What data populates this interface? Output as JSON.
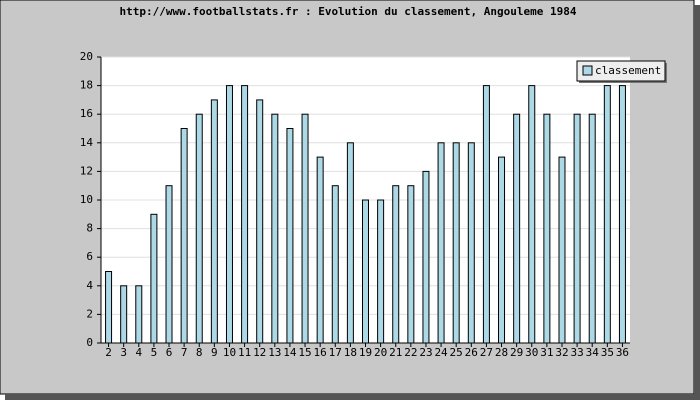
{
  "chart_data": {
    "type": "bar",
    "title": "http://www.footballstats.fr : Evolution du classement, Angouleme 1984",
    "categories": [
      "2",
      "3",
      "4",
      "5",
      "6",
      "7",
      "8",
      "9",
      "10",
      "11",
      "12",
      "13",
      "14",
      "15",
      "16",
      "17",
      "18",
      "19",
      "20",
      "21",
      "22",
      "23",
      "24",
      "25",
      "26",
      "27",
      "28",
      "29",
      "30",
      "31",
      "32",
      "33",
      "34",
      "35",
      "36"
    ],
    "series": [
      {
        "name": "classement",
        "color": "#add8e6",
        "values": [
          5,
          4,
          4,
          9,
          11,
          15,
          16,
          17,
          18,
          18,
          17,
          16,
          15,
          16,
          13,
          11,
          14,
          10,
          10,
          11,
          11,
          12,
          14,
          14,
          14,
          18,
          13,
          16,
          18,
          16,
          13,
          16,
          16,
          18,
          18
        ]
      }
    ],
    "ylim": [
      0,
      20
    ],
    "yticks": [
      0,
      2,
      4,
      6,
      8,
      10,
      12,
      14,
      16,
      18,
      20
    ],
    "grid": true,
    "legend": "top-right"
  }
}
